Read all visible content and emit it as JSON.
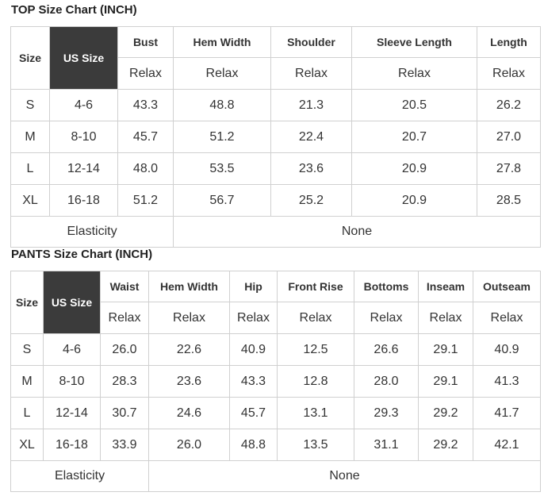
{
  "tables": [
    {
      "title": "TOP Size Chart (INCH)",
      "size_header": "Size",
      "us_size_header": "US Size",
      "columns": [
        "Bust",
        "Hem Width",
        "Shoulder",
        "Sleeve Length",
        "Length"
      ],
      "sub_header": [
        "Relax",
        "Relax",
        "Relax",
        "Relax",
        "Relax"
      ],
      "rows": [
        [
          "S",
          "4-6",
          "43.3",
          "48.8",
          "21.3",
          "20.5",
          "26.2"
        ],
        [
          "M",
          "8-10",
          "45.7",
          "51.2",
          "22.4",
          "20.7",
          "27.0"
        ],
        [
          "L",
          "12-14",
          "48.0",
          "53.5",
          "23.6",
          "20.9",
          "27.8"
        ],
        [
          "XL",
          "16-18",
          "51.2",
          "56.7",
          "25.2",
          "20.9",
          "28.5"
        ]
      ],
      "footer": [
        "Elasticity",
        "None"
      ]
    },
    {
      "title": "PANTS Size Chart (INCH)",
      "size_header": "Size",
      "us_size_header": "US Size",
      "columns": [
        "Waist",
        "Hem Width",
        "Hip",
        "Front Rise",
        "Bottoms",
        "Inseam",
        "Outseam"
      ],
      "sub_header": [
        "Relax",
        "Relax",
        "Relax",
        "Relax",
        "Relax",
        "Relax",
        "Relax"
      ],
      "rows": [
        [
          "S",
          "4-6",
          "26.0",
          "22.6",
          "40.9",
          "12.5",
          "26.6",
          "29.1",
          "40.9"
        ],
        [
          "M",
          "8-10",
          "28.3",
          "23.6",
          "43.3",
          "12.8",
          "28.0",
          "29.1",
          "41.3"
        ],
        [
          "L",
          "12-14",
          "30.7",
          "24.6",
          "45.7",
          "13.1",
          "29.3",
          "29.2",
          "41.7"
        ],
        [
          "XL",
          "16-18",
          "33.9",
          "26.0",
          "48.8",
          "13.5",
          "31.1",
          "29.2",
          "42.1"
        ]
      ],
      "footer": [
        "Elasticity",
        "None"
      ]
    }
  ]
}
